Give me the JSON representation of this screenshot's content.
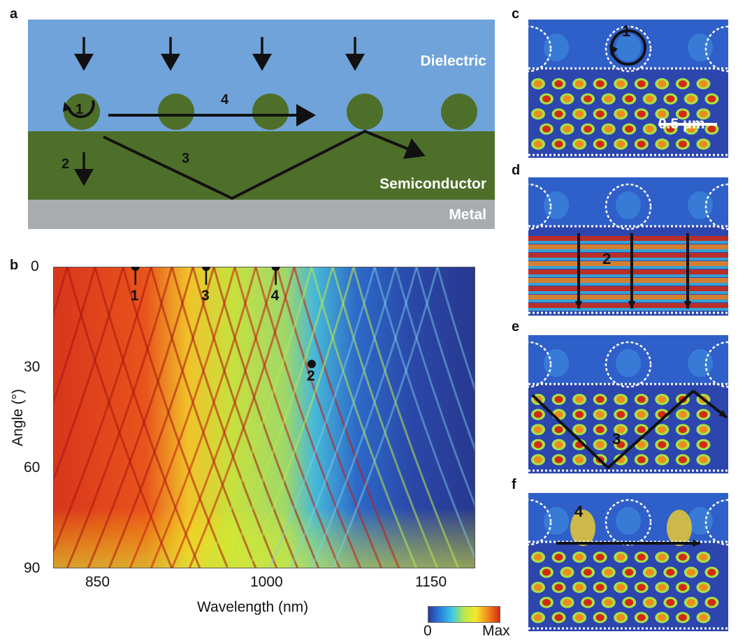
{
  "panel_labels": {
    "a": "a",
    "b": "b",
    "c": "c",
    "d": "d",
    "e": "e",
    "f": "f"
  },
  "schematic": {
    "layers": {
      "dielectric": "Dielectric",
      "semiconductor": "Semiconductor",
      "metal": "Metal"
    },
    "path_labels": {
      "p1": "1",
      "p2": "2",
      "p3": "3",
      "p4": "4"
    },
    "colors": {
      "dielectric": "#6fa3d9",
      "semiconductor": "#4e6f2a",
      "metal": "#a9acae",
      "particle": "#4e6f2a"
    }
  },
  "map": {
    "ylabel": "Angle (°)",
    "xlabel": "Wavelength (nm)",
    "xticks": [
      "850",
      "1000",
      "1150"
    ],
    "yticks": [
      "0",
      "30",
      "60",
      "90"
    ],
    "markers": [
      {
        "label": "1",
        "wavelength": 878,
        "angle": 0
      },
      {
        "label": "3",
        "wavelength": 945,
        "angle": 0
      },
      {
        "label": "4",
        "wavelength": 1011,
        "angle": 0
      },
      {
        "label": "2",
        "wavelength": 1045,
        "angle": 29
      }
    ],
    "colorbar": {
      "min": "0",
      "max": "Max"
    }
  },
  "chart_data": {
    "type": "heatmap",
    "title": "",
    "xlabel": "Wavelength (nm)",
    "ylabel": "Angle (°)",
    "xlim": [
      800,
      1200
    ],
    "ylim": [
      90,
      0
    ],
    "x_ticks": [
      850,
      1000,
      1150
    ],
    "y_ticks": [
      0,
      30,
      60,
      90
    ],
    "colorbar": {
      "min_label": "0",
      "max_label": "Max",
      "colors": [
        "#2b3a9a",
        "#2a7fe0",
        "#3fc9e6",
        "#b8e84a",
        "#f5e82c",
        "#f08a1c",
        "#d42a12"
      ]
    },
    "marked_points": [
      {
        "label": "1",
        "x": 878,
        "y": 0
      },
      {
        "label": "3",
        "x": 945,
        "y": 0
      },
      {
        "label": "4",
        "x": 1011,
        "y": 0
      },
      {
        "label": "2",
        "x": 1045,
        "y": 29
      }
    ]
  },
  "field_panels": {
    "c": {
      "mode": "1",
      "scale_bar": "0.5 μm"
    },
    "d": {
      "mode": "2"
    },
    "e": {
      "mode": "3"
    },
    "f": {
      "mode": "4"
    }
  }
}
